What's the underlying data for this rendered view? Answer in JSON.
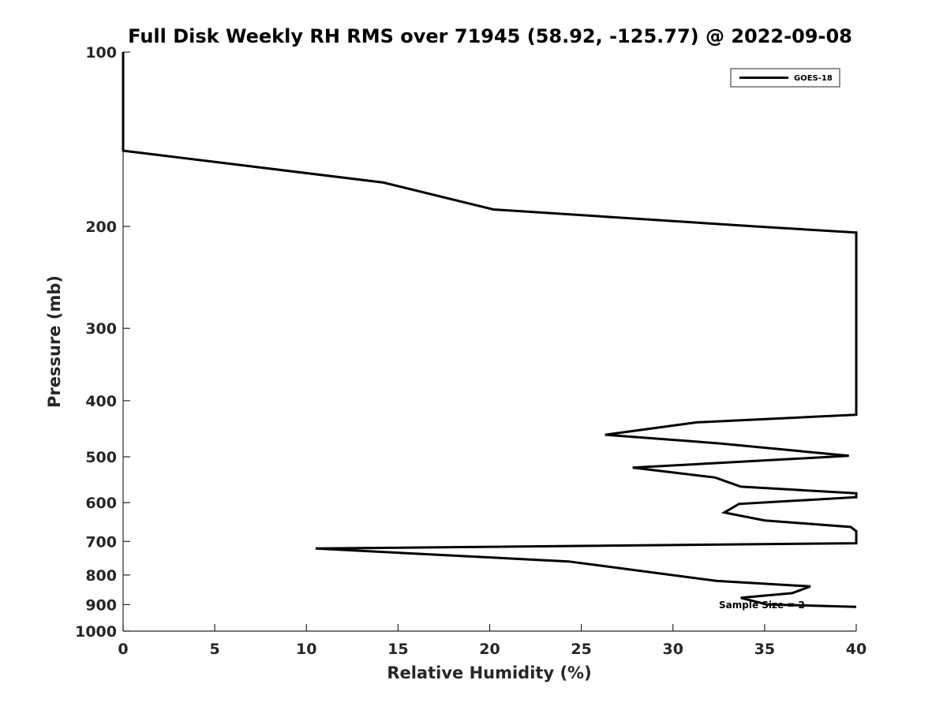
{
  "chart_data": {
    "type": "line",
    "title": "Full Disk Weekly RH RMS over 71945 (58.92, -125.77) @ 2022-09-08",
    "xlabel": "Relative Humidity (%)",
    "ylabel": "Pressure (mb)",
    "xlim": [
      0,
      40
    ],
    "ylim": [
      100,
      1000
    ],
    "y_scale": "log",
    "y_reversed": true,
    "grid": false,
    "legend_position": "top-right",
    "x_ticks": [
      0,
      5,
      10,
      15,
      20,
      25,
      30,
      35,
      40
    ],
    "y_ticks": [
      100,
      200,
      300,
      400,
      500,
      600,
      700,
      800,
      900,
      1000
    ],
    "annotation": "Sample Size = 2",
    "series": [
      {
        "name": "GOES-18",
        "color": "#000000",
        "points": [
          [
            0,
            100
          ],
          [
            0,
            137
          ],
          [
            0,
            148
          ],
          [
            14.2,
            168
          ],
          [
            20.2,
            187
          ],
          [
            34.5,
            200
          ],
          [
            40,
            205
          ],
          [
            40,
            423
          ],
          [
            31.3,
            436
          ],
          [
            26.3,
            458
          ],
          [
            32.5,
            474
          ],
          [
            39.6,
            498
          ],
          [
            27.8,
            522
          ],
          [
            32.3,
            543
          ],
          [
            33.7,
            563
          ],
          [
            40,
            578
          ],
          [
            40,
            587
          ],
          [
            33.6,
            603
          ],
          [
            32.8,
            624
          ],
          [
            35,
            644
          ],
          [
            39.7,
            661
          ],
          [
            40,
            672
          ],
          [
            40,
            705
          ],
          [
            10.5,
            720
          ],
          [
            24.3,
            758
          ],
          [
            32.4,
            819
          ],
          [
            37.5,
            837
          ],
          [
            36.5,
            860
          ],
          [
            33.7,
            876
          ],
          [
            35.1,
            899
          ],
          [
            40,
            908
          ]
        ]
      }
    ]
  }
}
